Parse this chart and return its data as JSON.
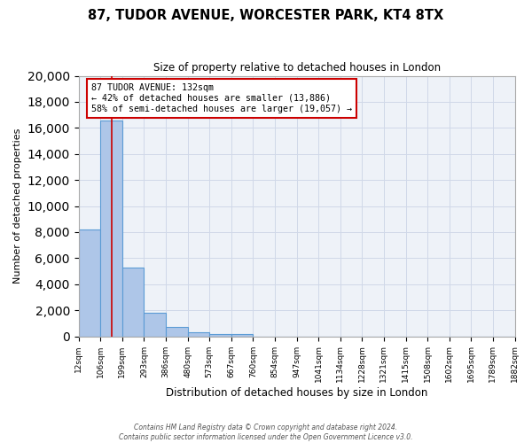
{
  "title": "87, TUDOR AVENUE, WORCESTER PARK, KT4 8TX",
  "subtitle": "Size of property relative to detached houses in London",
  "xlabel": "Distribution of detached houses by size in London",
  "ylabel": "Number of detached properties",
  "bin_edges": [
    "12sqm",
    "106sqm",
    "199sqm",
    "293sqm",
    "386sqm",
    "480sqm",
    "573sqm",
    "667sqm",
    "760sqm",
    "854sqm",
    "947sqm",
    "1041sqm",
    "1134sqm",
    "1228sqm",
    "1321sqm",
    "1415sqm",
    "1508sqm",
    "1602sqm",
    "1695sqm",
    "1789sqm",
    "1882sqm"
  ],
  "bar_values": [
    8200,
    16600,
    5300,
    1800,
    750,
    300,
    200,
    150,
    0,
    0,
    0,
    0,
    0,
    0,
    0,
    0,
    0,
    0,
    0,
    0
  ],
  "bar_color": "#aec6e8",
  "bar_edge_color": "#5b9bd5",
  "grid_color": "#d0d8e8",
  "background_color": "#eef2f8",
  "property_line_x": 1,
  "property_line_color": "#cc0000",
  "annotation_title": "87 TUDOR AVENUE: 132sqm",
  "annotation_line1": "← 42% of detached houses are smaller (13,886)",
  "annotation_line2": "58% of semi-detached houses are larger (19,057) →",
  "annotation_box_color": "#ffffff",
  "annotation_box_edge": "#cc0000",
  "ylim": [
    0,
    20000
  ],
  "yticks": [
    0,
    2000,
    4000,
    6000,
    8000,
    10000,
    12000,
    14000,
    16000,
    18000,
    20000
  ],
  "footer_line1": "Contains HM Land Registry data © Crown copyright and database right 2024.",
  "footer_line2": "Contains public sector information licensed under the Open Government Licence v3.0."
}
